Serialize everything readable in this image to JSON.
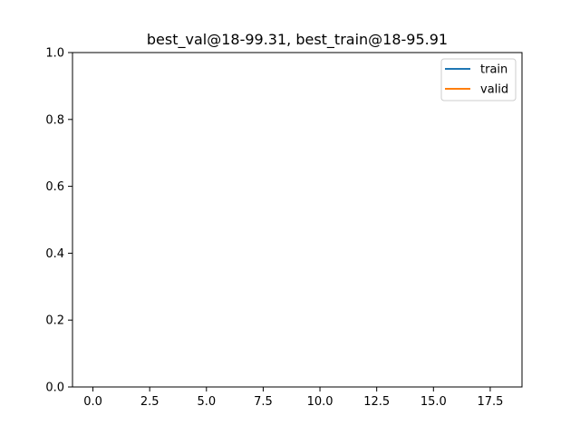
{
  "chart_data": {
    "type": "line",
    "title": "best_val@18-99.31, best_train@18-95.91",
    "xlabel": "",
    "ylabel": "",
    "xlim": [
      -0.9,
      18.9
    ],
    "ylim": [
      0,
      1
    ],
    "x_ticks": [
      0,
      2.5,
      5,
      7.5,
      10,
      12.5,
      15,
      17.5
    ],
    "x_tick_labels": [
      "0.0",
      "2.5",
      "5.0",
      "7.5",
      "10.0",
      "12.5",
      "15.0",
      "17.5"
    ],
    "y_ticks": [
      0,
      0.2,
      0.4,
      0.6,
      0.8,
      1.0
    ],
    "y_tick_labels": [
      "0.0",
      "0.2",
      "0.4",
      "0.6",
      "0.8",
      "1.0"
    ],
    "grid": false,
    "legend_position": "top-right",
    "series": [
      {
        "name": "train",
        "color": "#1f77b4",
        "x": [],
        "y": []
      },
      {
        "name": "valid",
        "color": "#ff7f0e",
        "x": [],
        "y": []
      }
    ]
  }
}
